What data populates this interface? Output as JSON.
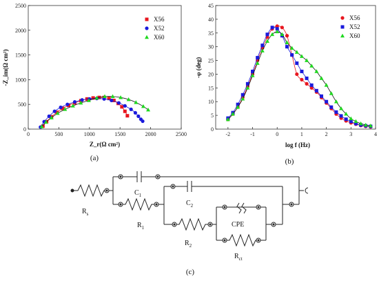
{
  "chart_data": [
    {
      "type": "scatter",
      "panel_label": "(a)",
      "xlabel": "Z_r(Ω cm²)",
      "ylabel": "-Z_im(Ω cm²)",
      "xlim": [
        0,
        2500
      ],
      "ylim": [
        0,
        2500
      ],
      "xticks": [
        0,
        500,
        1000,
        1500,
        2000,
        2500
      ],
      "yticks": [
        0,
        500,
        1000,
        1500,
        2000,
        2500
      ],
      "grid": false,
      "legend": "top-right",
      "series": [
        {
          "name": "X56",
          "color": "#e8161f",
          "marker": "square",
          "x": [
            240,
            300,
            380,
            470,
            560,
            660,
            760,
            860,
            960,
            1060,
            1160,
            1240,
            1320,
            1400,
            1470,
            1530,
            1580,
            1620
          ],
          "y": [
            60,
            150,
            250,
            340,
            420,
            480,
            530,
            575,
            610,
            630,
            640,
            640,
            620,
            580,
            520,
            450,
            360,
            270
          ]
        },
        {
          "name": "X52",
          "color": "#1a1adc",
          "marker": "circle",
          "x": [
            200,
            260,
            340,
            430,
            530,
            640,
            760,
            880,
            1000,
            1120,
            1240,
            1360,
            1480,
            1580,
            1680,
            1750,
            1800,
            1840,
            1870
          ],
          "y": [
            40,
            150,
            260,
            360,
            440,
            500,
            550,
            590,
            610,
            620,
            610,
            580,
            530,
            470,
            400,
            330,
            260,
            200,
            160
          ]
        },
        {
          "name": "X60",
          "color": "#1fd81f",
          "marker": "triangle",
          "x": [
            220,
            290,
            380,
            480,
            600,
            730,
            860,
            990,
            1120,
            1250,
            1380,
            1510,
            1640,
            1760,
            1880,
            1960
          ],
          "y": [
            50,
            140,
            230,
            320,
            400,
            470,
            530,
            580,
            630,
            660,
            660,
            640,
            600,
            540,
            460,
            390
          ]
        }
      ]
    },
    {
      "type": "scatter",
      "panel_label": "(b)",
      "xlabel": "log f (Hz)",
      "ylabel": "-φ (deg)",
      "xlim": [
        -2.5,
        4
      ],
      "ylim": [
        0,
        45
      ],
      "xticks": [
        -2,
        -1,
        0,
        1,
        2,
        3,
        4
      ],
      "yticks": [
        0,
        5,
        10,
        15,
        20,
        25,
        30,
        35,
        40,
        45
      ],
      "grid": false,
      "legend": "top-right",
      "series": [
        {
          "name": "X56",
          "color": "#e8161f",
          "marker": "circle",
          "x": [
            -2,
            -1.8,
            -1.6,
            -1.4,
            -1.2,
            -1.0,
            -0.8,
            -0.6,
            -0.4,
            -0.2,
            0,
            0.2,
            0.4,
            0.6,
            0.8,
            1.0,
            1.2,
            1.4,
            1.6,
            1.8,
            2.0,
            2.2,
            2.4,
            2.6,
            2.8,
            3.0,
            3.2,
            3.4,
            3.6,
            3.8
          ],
          "y": [
            3.5,
            5.5,
            8,
            11.5,
            15.5,
            20,
            25,
            29.5,
            33.5,
            36.5,
            37.5,
            37,
            34,
            27,
            20,
            18,
            16.5,
            15,
            13.5,
            11.5,
            9.5,
            7.5,
            5.5,
            4,
            3,
            2.3,
            1.8,
            1.3,
            1,
            0.8
          ]
        },
        {
          "name": "X52",
          "color": "#1a1adc",
          "marker": "square",
          "x": [
            -2,
            -1.8,
            -1.6,
            -1.4,
            -1.2,
            -1.0,
            -0.8,
            -0.6,
            -0.4,
            -0.2,
            0,
            0.2,
            0.4,
            0.6,
            0.8,
            1.0,
            1.2,
            1.4,
            1.6,
            1.8,
            2.0,
            2.2,
            2.4,
            2.6,
            2.8,
            3.0,
            3.2,
            3.4,
            3.6,
            3.8
          ],
          "y": [
            4,
            6,
            9,
            12.5,
            16.5,
            21,
            26,
            30.5,
            34.5,
            37,
            36.5,
            34,
            30,
            27,
            24,
            21,
            18.5,
            16,
            14,
            12,
            10,
            8,
            6.2,
            4.8,
            3.6,
            2.8,
            2,
            1.5,
            1.2,
            1
          ]
        },
        {
          "name": "X60",
          "color": "#1fd81f",
          "marker": "triangle",
          "x": [
            -2,
            -1.8,
            -1.6,
            -1.4,
            -1.2,
            -1.0,
            -0.8,
            -0.6,
            -0.4,
            -0.2,
            0,
            0.2,
            0.4,
            0.6,
            0.8,
            1.0,
            1.2,
            1.4,
            1.6,
            1.8,
            2.0,
            2.2,
            2.4,
            2.6,
            2.8,
            3.0,
            3.2,
            3.4,
            3.6,
            3.8
          ],
          "y": [
            3.5,
            5.5,
            8,
            11,
            15,
            19.5,
            24,
            28.5,
            32,
            34.5,
            35.5,
            34.5,
            31.5,
            29.5,
            28,
            26.5,
            25,
            23,
            21,
            18.5,
            16,
            13,
            10,
            7.5,
            5.5,
            3.8,
            2.8,
            2,
            1.5,
            1.2
          ]
        }
      ]
    }
  ],
  "circuit": {
    "panel_label": "(c)",
    "labels": {
      "rs": "R",
      "rs_sub": "s",
      "r1": "R",
      "r1_sub": "1",
      "c1": "C",
      "c1_sub": "1",
      "c2": "C",
      "c2_sub": "2",
      "r2": "R",
      "r2_sub": "2",
      "cpe": "CPE",
      "rct": "R",
      "rct_sub": "ct"
    }
  }
}
